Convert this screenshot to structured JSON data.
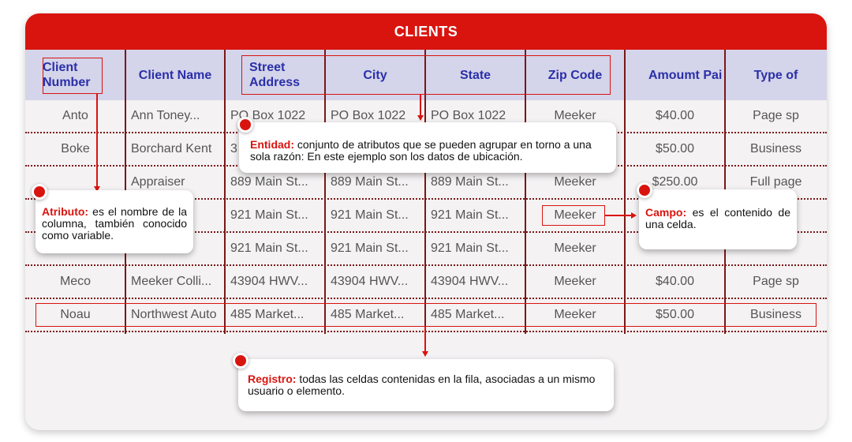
{
  "table": {
    "title": "CLIENTS",
    "headers": [
      "Client Number",
      "Client Name",
      "Street Address",
      "City",
      "State",
      "Zip Code",
      "Amoumt Pai",
      "Type of"
    ],
    "rows": [
      [
        "Anto",
        "Ann Toney...",
        "PO Box 1022",
        "PO Box 1022",
        "PO Box 1022",
        "Meeker",
        "$40.00",
        "Page sp"
      ],
      [
        "Boke",
        "Borchard Kent",
        "3",
        "",
        "",
        "",
        "$50.00",
        "Business"
      ],
      [
        "",
        "Appraiser",
        "889 Main St...",
        "889 Main St...",
        "889 Main St...",
        "Meeker",
        "$250.00",
        "Full page"
      ],
      [
        "",
        "",
        "921 Main St...",
        "921 Main St...",
        "921 Main St...",
        "Meeker",
        "",
        "s"
      ],
      [
        "",
        "",
        "921 Main St...",
        "921 Main St...",
        "921 Main St...",
        "Meeker",
        "",
        ""
      ],
      [
        "Meco",
        "Meeker Colli...",
        "43904 HWV...",
        "43904 HWV...",
        "43904 HWV...",
        "Meeker",
        "$40.00",
        "Page sp"
      ],
      [
        "Noau",
        "Northwest Auto",
        "485 Market...",
        "485 Market...",
        "485 Market...",
        "Meeker",
        "$50.00",
        "Business"
      ]
    ]
  },
  "callouts": {
    "entidad": {
      "term": "Entidad:",
      "text": "conjunto de atributos que se pueden agrupar en torno a una sola razón: En este ejemplo son los datos de ubicación."
    },
    "atributo": {
      "term": "Atributo:",
      "text": "es el nombre de la columna, también conocido como variable."
    },
    "campo": {
      "term": "Campo:",
      "text": "es el contenido de una celda."
    },
    "registro": {
      "term": "Registro:",
      "text": "todas las celdas contenidas en la fila, asociadas a un mismo usuario o elemento."
    }
  },
  "colors": {
    "accent": "#d9140f",
    "header_bg": "#d4d4ea",
    "header_text": "#2b2fa8",
    "grid": "#7a1717"
  }
}
